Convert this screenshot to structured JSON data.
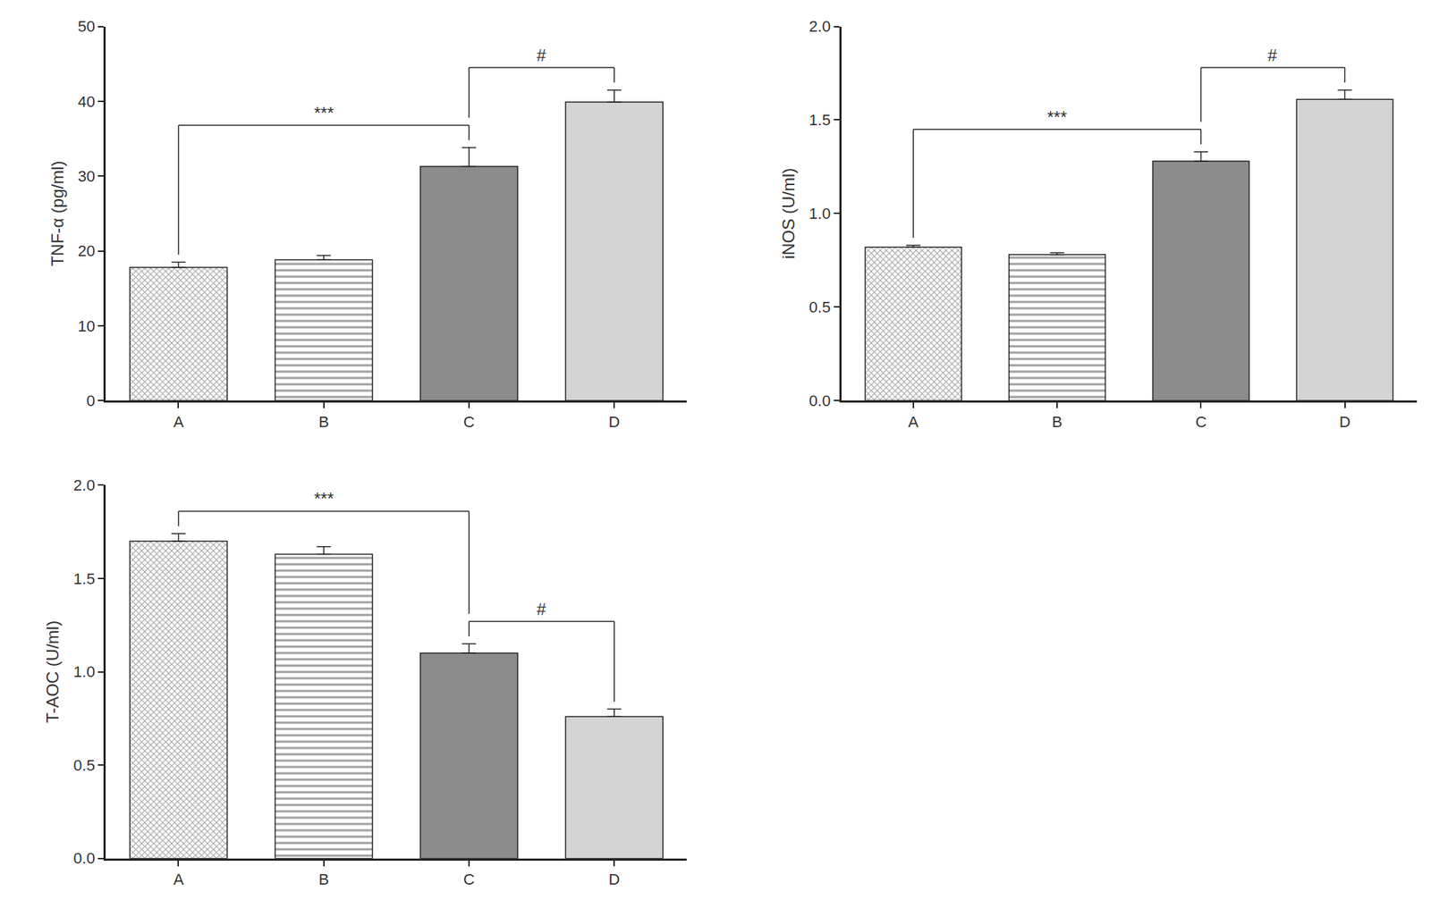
{
  "chart_data": [
    {
      "type": "bar",
      "categories": [
        "A",
        "B",
        "C",
        "D"
      ],
      "values": [
        17.8,
        18.8,
        31.3,
        39.9
      ],
      "errors": [
        0.7,
        0.6,
        2.5,
        1.6
      ],
      "colors": [
        "#ffffff",
        "#ffffff",
        "#8c8c8c",
        "#d4d4d4"
      ],
      "ylabel": "TNF-α (pg/ml)",
      "ylim": [
        0,
        50
      ],
      "yticks": [
        0,
        10,
        20,
        30,
        40,
        50
      ],
      "grid": false,
      "annotations": [
        {
          "text": "***",
          "from": "A",
          "to": "C"
        },
        {
          "text": "#",
          "from": "C",
          "to": "D"
        }
      ]
    },
    {
      "type": "bar",
      "categories": [
        "A",
        "B",
        "C",
        "D"
      ],
      "values": [
        0.82,
        0.78,
        1.28,
        1.61
      ],
      "errors": [
        0.01,
        0.01,
        0.05,
        0.05
      ],
      "colors": [
        "#ffffff",
        "#ffffff",
        "#8c8c8c",
        "#d4d4d4"
      ],
      "ylabel": "iNOS (U/ml)",
      "ylim": [
        0,
        2
      ],
      "yticks": [
        {
          "value": 0,
          "label": "0.0"
        },
        0.5,
        {
          "value": 1,
          "label": "1.0"
        },
        1.5,
        {
          "value": 2,
          "label": "2.0"
        }
      ],
      "grid": false,
      "annotations": [
        {
          "text": "***",
          "from": "A",
          "to": "C"
        },
        {
          "text": "#",
          "from": "C",
          "to": "D"
        }
      ]
    },
    {
      "type": "bar",
      "categories": [
        "A",
        "B",
        "C",
        "D"
      ],
      "values": [
        1.7,
        1.63,
        1.1,
        0.76
      ],
      "errors": [
        0.04,
        0.04,
        0.05,
        0.04
      ],
      "colors": [
        "#ffffff",
        "#ffffff",
        "#8c8c8c",
        "#d4d4d4"
      ],
      "ylabel": "T-AOC (U/ml)",
      "ylim": [
        0,
        2
      ],
      "yticks": [
        {
          "value": 0,
          "label": "0.0"
        },
        0.5,
        {
          "value": 1,
          "label": "1.0"
        },
        1.5,
        {
          "value": 2,
          "label": "2.0"
        }
      ],
      "grid": false,
      "annotations": [
        {
          "text": "#",
          "from": "C",
          "to": "D"
        },
        {
          "text": "***",
          "from": "A",
          "to": "C"
        }
      ]
    }
  ]
}
